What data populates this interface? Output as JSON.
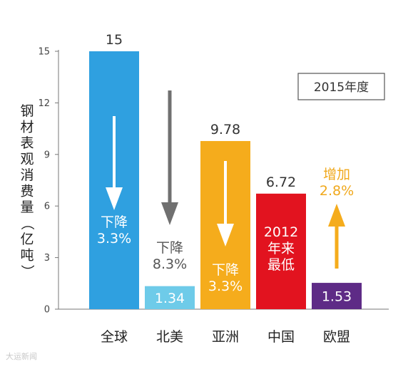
{
  "chart_data": {
    "type": "bar",
    "categories": [
      "全球",
      "北美",
      "亚洲",
      "中国",
      "欧盟"
    ],
    "values": [
      15,
      1.34,
      9.78,
      6.72,
      1.53
    ],
    "value_labels": [
      "15",
      "1.34",
      "9.78",
      "6.72",
      "1.53"
    ],
    "bar_colors": [
      "#2fa0e0",
      "#6ecbe9",
      "#f5ac1c",
      "#e2131f",
      "#5e2b86"
    ],
    "ylabel": "钢材表观消费量（亿吨）",
    "ylim": [
      0,
      15
    ],
    "yticks": [
      "0",
      "3",
      "6",
      "9",
      "12",
      "15"
    ],
    "grid": false,
    "legend_box": "2015年度",
    "annotations": [
      {
        "category": "全球",
        "lines": [
          "下降",
          "3.3%"
        ],
        "direction": "down",
        "text_color": "#ffffff",
        "arrow_color": "#ffffff"
      },
      {
        "category": "北美",
        "lines": [
          "下降",
          "8.3%"
        ],
        "direction": "down",
        "text_color": "#555555",
        "arrow_color": "#707070"
      },
      {
        "category": "亚洲",
        "lines": [
          "下降",
          "3.3%"
        ],
        "direction": "down",
        "text_color": "#ffffff",
        "arrow_color": "#ffffff"
      },
      {
        "category": "中国",
        "lines": [
          "2012",
          "年来",
          "最低"
        ],
        "direction": "none",
        "text_color": "#ffffff"
      },
      {
        "category": "欧盟",
        "lines": [
          "增加",
          "2.8%"
        ],
        "direction": "up",
        "text_color": "#f0a81c",
        "arrow_color": "#f5ac1c"
      }
    ]
  },
  "watermark": "大运新闻"
}
